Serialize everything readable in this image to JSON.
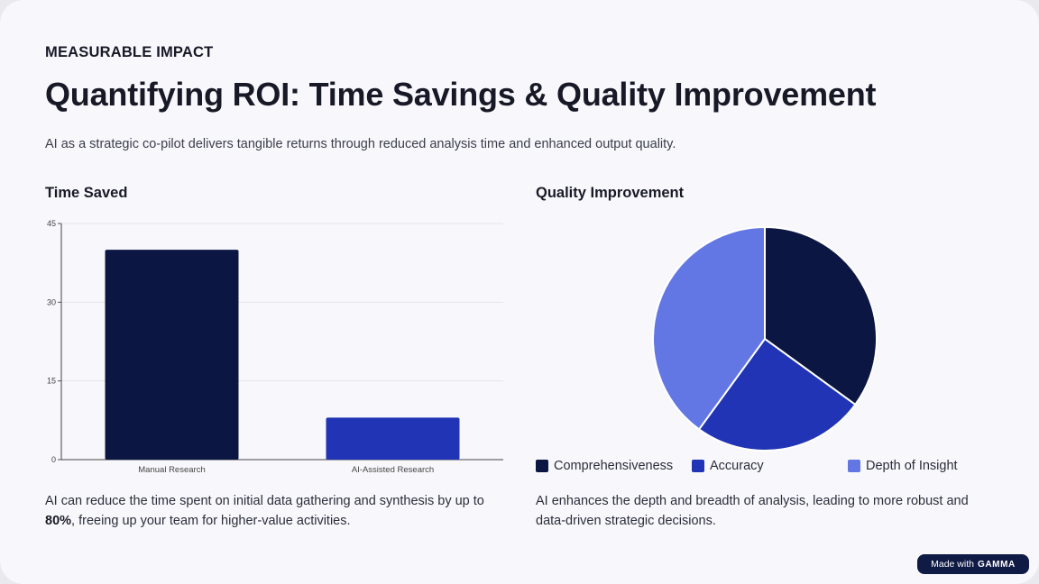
{
  "header": {
    "eyebrow": "MEASURABLE IMPACT",
    "title": "Quantifying ROI: Time Savings & Quality Improvement",
    "subtitle": "AI as a strategic co-pilot delivers tangible returns through reduced analysis time and enhanced output quality."
  },
  "time_section": {
    "title": "Time Saved",
    "body_prefix": "AI can reduce the time spent on initial data gathering and synthesis by up to ",
    "body_highlight": "80%",
    "body_suffix": ", freeing up your team for higher-value activities."
  },
  "quality_section": {
    "title": "Quality Improvement",
    "body": "AI enhances the depth and breadth of analysis, leading to more robust and data-driven strategic decisions."
  },
  "badge": {
    "prefix": "Made with",
    "brand": "GAMMA"
  },
  "colors": {
    "dark_navy": "#0b1642",
    "royal_blue": "#2034b5",
    "light_blue": "#6277e3"
  },
  "chart_data": [
    {
      "type": "bar",
      "categories": [
        "Manual Research",
        "AI-Assisted Research"
      ],
      "values": [
        40,
        8
      ],
      "colors": [
        "#0b1642",
        "#2034b5"
      ],
      "yticks": [
        0,
        15,
        30,
        45
      ],
      "ylim": [
        0,
        45
      ],
      "grid": true,
      "title": "",
      "xlabel": "",
      "ylabel": ""
    },
    {
      "type": "pie",
      "labels": [
        "Comprehensiveness",
        "Accuracy",
        "Depth of Insight"
      ],
      "values": [
        35,
        25,
        40
      ],
      "colors": [
        "#0b1642",
        "#2034b5",
        "#6277e3"
      ],
      "legend": "bottom"
    }
  ]
}
